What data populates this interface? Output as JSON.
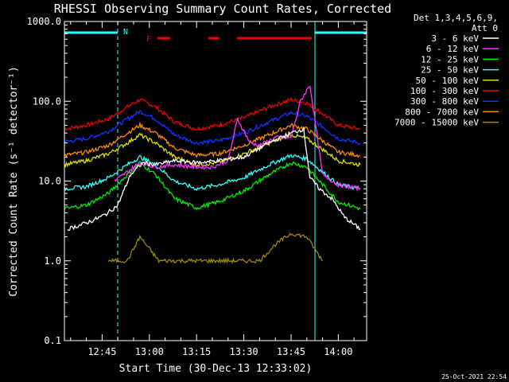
{
  "chart_data": {
    "type": "line",
    "title": "RHESSI Observing Summary Count Rates, Corrected",
    "xlabel": "Start Time (30-Dec-13 12:33:02)",
    "ylabel": "Corrected Count Rate (s⁻¹ detector⁻¹)",
    "y_scale": "log",
    "ylim": [
      0.1,
      1000
    ],
    "xlim": [
      "12:33:02",
      "14:09:00"
    ],
    "y_ticks": [
      "0.1",
      "1.0",
      "10.0",
      "100.0",
      "1000.0"
    ],
    "x_ticks": [
      "12:45",
      "13:00",
      "13:15",
      "13:30",
      "13:45",
      "14:00"
    ],
    "legend": {
      "placement": "right",
      "header": [
        "Det 1,3,4,5,6,9,",
        "Att 0"
      ],
      "entries": [
        {
          "label": "3 - 6 keV",
          "color": "#ffffff"
        },
        {
          "label": "6 - 12 keV",
          "color": "#ff33ff"
        },
        {
          "label": "12 - 25 keV",
          "color": "#00ee00"
        },
        {
          "label": "25 - 50 keV",
          "color": "#33ffff"
        },
        {
          "label": "50 - 100 keV",
          "color": "#dddd00"
        },
        {
          "label": "100 - 300 keV",
          "color": "#ee0000"
        },
        {
          "label": "300 - 800 keV",
          "color": "#1133ff"
        },
        {
          "label": "800 - 7000 keV",
          "color": "#ff8800"
        },
        {
          "label": "7000 - 15000 keV",
          "color": "#998800"
        }
      ]
    },
    "series": [
      {
        "name": "100 - 300 keV",
        "color": "#ee0000",
        "x": [
          "12:33",
          "12:40",
          "12:47",
          "12:53",
          "12:57",
          "13:02",
          "13:08",
          "13:15",
          "13:22",
          "13:30",
          "13:38",
          "13:45",
          "13:50",
          "13:55",
          "14:00",
          "14:07"
        ],
        "y": [
          45,
          50,
          60,
          85,
          105,
          85,
          55,
          45,
          50,
          62,
          85,
          105,
          95,
          70,
          50,
          45
        ]
      },
      {
        "name": "300 - 800 keV",
        "color": "#1133ff",
        "x": [
          "12:33",
          "12:40",
          "12:47",
          "12:53",
          "12:57",
          "13:02",
          "13:08",
          "13:15",
          "13:22",
          "13:30",
          "13:38",
          "13:45",
          "13:50",
          "13:55",
          "14:00",
          "14:07"
        ],
        "y": [
          31,
          34,
          42,
          60,
          75,
          60,
          38,
          30,
          32,
          40,
          55,
          72,
          65,
          48,
          34,
          30
        ]
      },
      {
        "name": "800 - 7000 keV",
        "color": "#ff8800",
        "x": [
          "12:33",
          "12:40",
          "12:47",
          "12:53",
          "12:57",
          "13:02",
          "13:08",
          "13:15",
          "13:22",
          "13:30",
          "13:38",
          "13:45",
          "13:50",
          "13:55",
          "14:00",
          "14:07"
        ],
        "y": [
          21,
          23,
          28,
          40,
          50,
          40,
          26,
          21,
          22,
          28,
          38,
          50,
          45,
          32,
          23,
          21
        ]
      },
      {
        "name": "50 - 100 keV",
        "color": "#dddd00",
        "x": [
          "12:33",
          "12:40",
          "12:47",
          "12:53",
          "12:57",
          "13:02",
          "13:08",
          "13:15",
          "13:22",
          "13:30",
          "13:38",
          "13:45",
          "13:50",
          "13:55",
          "14:00",
          "14:07"
        ],
        "y": [
          16,
          18,
          22,
          30,
          38,
          30,
          20,
          16,
          17,
          22,
          30,
          38,
          34,
          25,
          18,
          16
        ]
      },
      {
        "name": "25 - 50 keV",
        "color": "#33ffff",
        "x": [
          "12:33",
          "12:40",
          "12:47",
          "12:53",
          "12:57",
          "13:02",
          "13:08",
          "13:15",
          "13:22",
          "13:30",
          "13:38",
          "13:45",
          "13:50",
          "13:55",
          "14:00",
          "14:07"
        ],
        "y": [
          8,
          8.5,
          11,
          16,
          20,
          16,
          10,
          8,
          9,
          11,
          16,
          21,
          19,
          13,
          9,
          8
        ]
      },
      {
        "name": "12 - 25 keV",
        "color": "#00ee00",
        "x": [
          "12:33",
          "12:40",
          "12:47",
          "12:53",
          "12:57",
          "13:02",
          "13:08",
          "13:15",
          "13:22",
          "13:30",
          "13:38",
          "13:45",
          "13:50",
          "13:55",
          "14:00",
          "14:07"
        ],
        "y": [
          4.5,
          5,
          7,
          12,
          17,
          12,
          6,
          4.6,
          5.5,
          7.5,
          12,
          17,
          15,
          9,
          5.5,
          4.5
        ]
      },
      {
        "name": "6 - 12 keV",
        "color": "#ff33ff",
        "x": [
          "12:49",
          "12:53",
          "12:57",
          "13:02",
          "13:08",
          "13:15",
          "13:20",
          "13:25",
          "13:28",
          "13:32",
          "13:35",
          "13:40",
          "13:45",
          "13:48",
          "13:51",
          "13:55",
          "14:00",
          "14:07"
        ],
        "y": [
          10,
          13,
          17,
          15,
          16,
          15,
          15,
          18,
          60,
          30,
          28,
          35,
          35,
          100,
          160,
          12,
          9,
          8
        ]
      },
      {
        "name": "3 - 6 keV",
        "color": "#ffffff",
        "x": [
          "12:34",
          "12:38",
          "12:42",
          "12:46",
          "12:50",
          "12:54",
          "12:58",
          "13:02",
          "13:08",
          "13:15",
          "13:22",
          "13:30",
          "13:38",
          "13:45",
          "13:49",
          "13:51",
          "13:54",
          "13:58",
          "14:02",
          "14:07"
        ],
        "y": [
          2.5,
          2.8,
          3.2,
          3.8,
          5,
          12,
          17,
          16,
          18,
          17,
          18,
          20,
          30,
          40,
          45,
          11,
          8,
          6,
          3.5,
          2.5
        ]
      },
      {
        "name": "7000 - 15000 keV",
        "color": "#998800",
        "x": [
          "12:47",
          "12:53",
          "12:57",
          "13:03",
          "13:05",
          "13:30",
          "13:35",
          "13:40",
          "13:45",
          "13:50",
          "13:55"
        ],
        "y": [
          1,
          1,
          2,
          1,
          1,
          1,
          1,
          1.6,
          2.2,
          2.0,
          1
        ]
      }
    ],
    "annotations": [
      {
        "text": "N",
        "color": "#33ffff"
      },
      {
        "text": "F",
        "color": "#ee0000"
      }
    ],
    "footer_timestamp": "25-Oct-2021 22:54"
  }
}
